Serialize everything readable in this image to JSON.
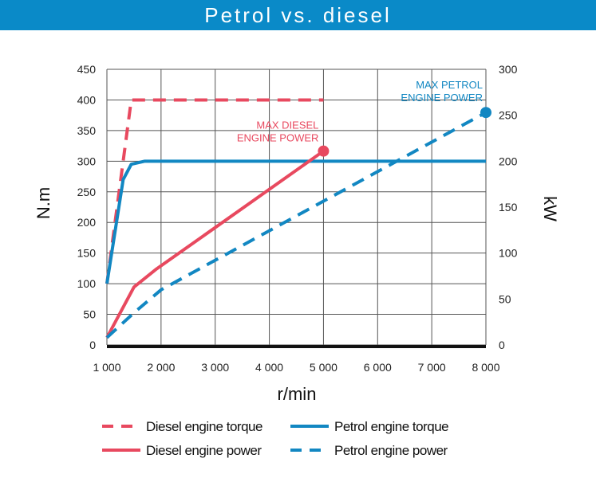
{
  "title": "Petrol vs. diesel",
  "chart_data": {
    "type": "line",
    "title": "Petrol vs. diesel",
    "xlabel": "r/min",
    "ylabel": "N.m",
    "y2label": "kW",
    "xlim": [
      1000,
      8000
    ],
    "ylim": [
      0,
      450
    ],
    "y2lim": [
      0,
      300
    ],
    "grid": true,
    "x_ticks": [
      1000,
      2000,
      3000,
      4000,
      5000,
      6000,
      7000,
      8000
    ],
    "x_tick_labels": [
      "1 000",
      "2 000",
      "3 000",
      "4 000",
      "5 000",
      "6 000",
      "7 000",
      "8 000"
    ],
    "y_ticks": [
      "0",
      "50",
      "100",
      "150",
      "200",
      "250",
      "300",
      "350",
      "400",
      "450"
    ],
    "y2_ticks": [
      "0",
      "50",
      "100",
      "150",
      "200",
      "250",
      "300"
    ],
    "series": [
      {
        "name": "Diesel engine torque",
        "axis": "left",
        "color": "#e8495f",
        "dash": true,
        "points": [
          [
            1000,
            100
          ],
          [
            1450,
            400
          ],
          [
            5000,
            400
          ]
        ]
      },
      {
        "name": "Petrol engine torque",
        "axis": "left",
        "color": "#1287c2",
        "dash": false,
        "points": [
          [
            1000,
            100
          ],
          [
            1300,
            270
          ],
          [
            1450,
            295
          ],
          [
            1700,
            300
          ],
          [
            8000,
            300
          ]
        ]
      },
      {
        "name": "Diesel engine power",
        "axis": "right",
        "color": "#e8495f",
        "dash": false,
        "points": [
          [
            1000,
            8
          ],
          [
            1500,
            63
          ],
          [
            1900,
            82
          ],
          [
            5000,
            211
          ]
        ]
      },
      {
        "name": "Petrol engine power",
        "axis": "right",
        "color": "#1287c2",
        "dash": true,
        "points": [
          [
            1000,
            8
          ],
          [
            1500,
            35
          ],
          [
            2000,
            60
          ],
          [
            8000,
            253
          ]
        ]
      }
    ],
    "annotations": [
      {
        "lines": [
          "MAX DIESEL",
          "ENGINE POWER"
        ],
        "point": [
          5000,
          211
        ],
        "axis": "right",
        "color": "#e8495f"
      },
      {
        "lines": [
          "MAX PETROL",
          "ENGINE POWER"
        ],
        "point": [
          8000,
          253
        ],
        "axis": "right",
        "color": "#1287c2"
      }
    ],
    "legend_position": "bottom"
  }
}
